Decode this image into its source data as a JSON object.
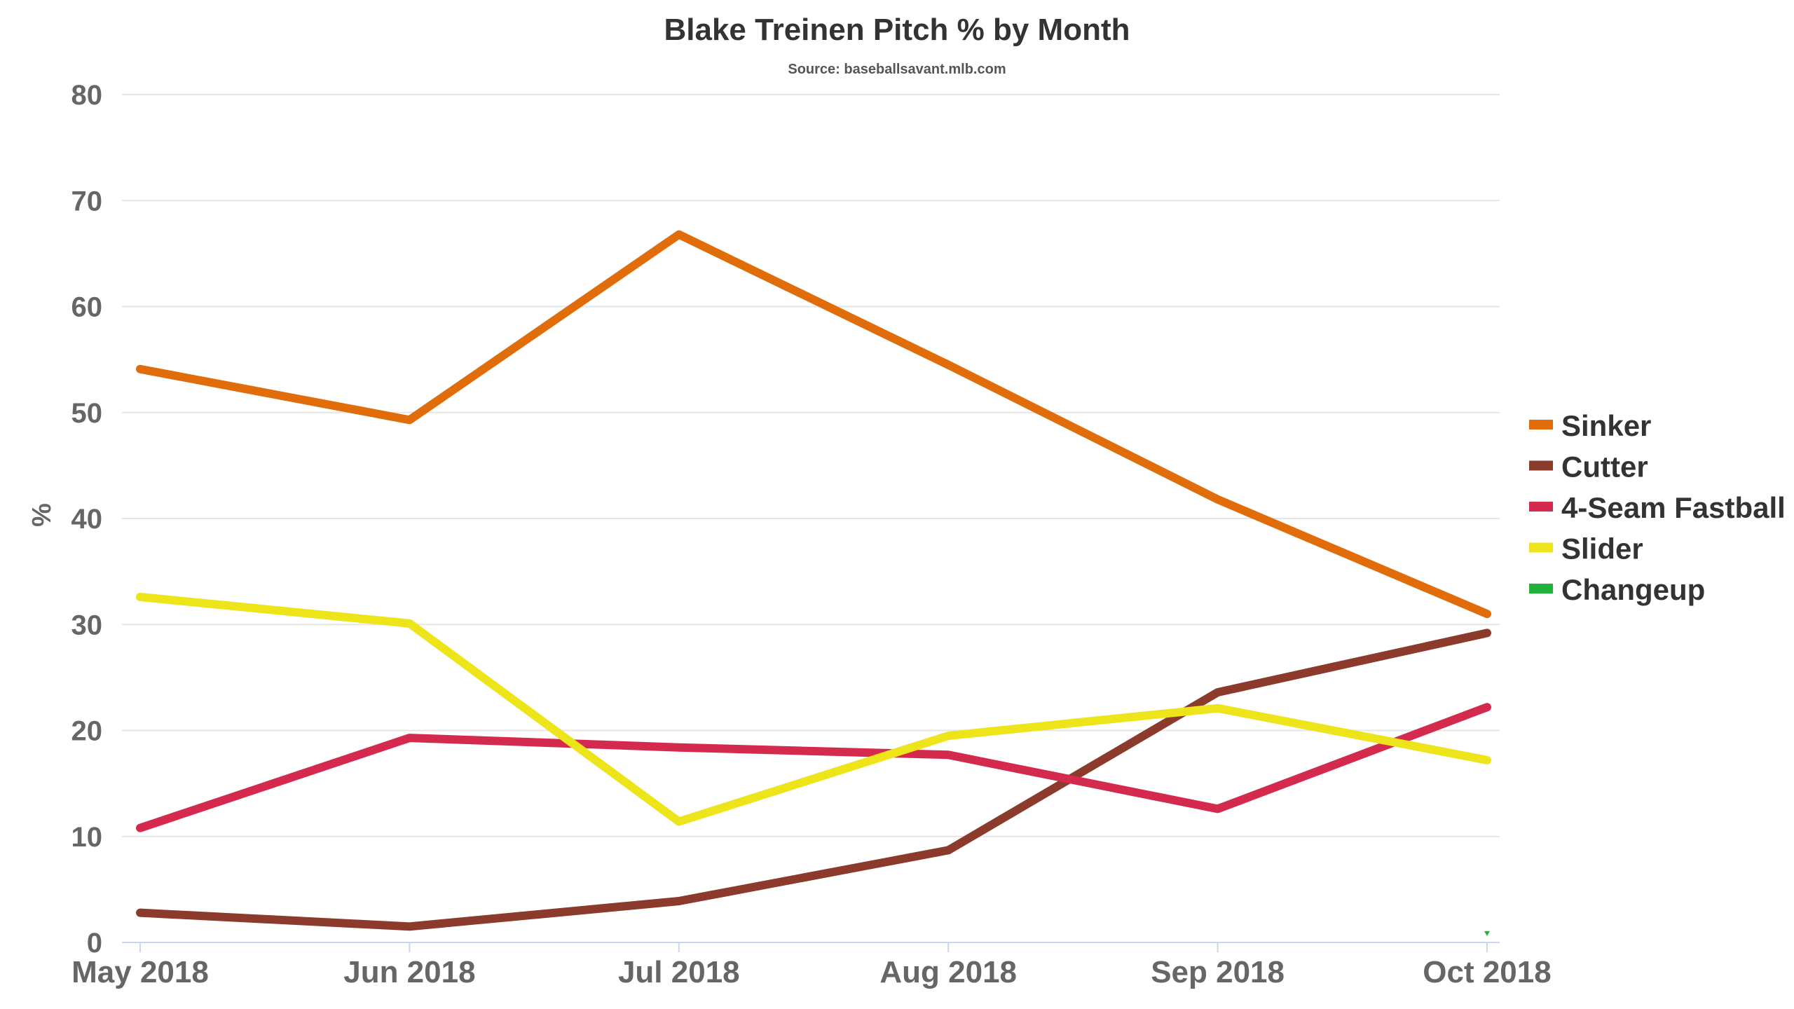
{
  "chart_data": {
    "type": "line",
    "title": "Blake Treinen Pitch % by Month",
    "subtitle": "Source: baseballsavant.mlb.com",
    "ylabel": "%",
    "xlabel": "",
    "ylim": [
      0,
      80
    ],
    "yticks": [
      "0",
      "10",
      "20",
      "30",
      "40",
      "50",
      "60",
      "70",
      "80"
    ],
    "categories": [
      "May 2018",
      "Jun 2018",
      "Jul 2018",
      "Aug 2018",
      "Sep 2018",
      "Oct 2018"
    ],
    "grid": true,
    "legend_position": "right",
    "series": [
      {
        "name": "Sinker",
        "color": "#e06c0a",
        "values": [
          54.1,
          49.3,
          66.8,
          54.5,
          41.8,
          31.0
        ]
      },
      {
        "name": "Cutter",
        "color": "#8b3a2b",
        "values": [
          2.8,
          1.5,
          3.9,
          8.7,
          23.6,
          29.2
        ]
      },
      {
        "name": "4-Seam Fastball",
        "color": "#d42a4d",
        "values": [
          10.8,
          19.3,
          18.4,
          17.7,
          12.6,
          22.2
        ]
      },
      {
        "name": "Slider",
        "color": "#ede41a",
        "values": [
          32.6,
          30.1,
          11.4,
          19.5,
          22.1,
          17.2
        ]
      },
      {
        "name": "Changeup",
        "color": "#22b13a",
        "values": [
          null,
          null,
          null,
          null,
          null,
          0.8
        ]
      }
    ]
  }
}
